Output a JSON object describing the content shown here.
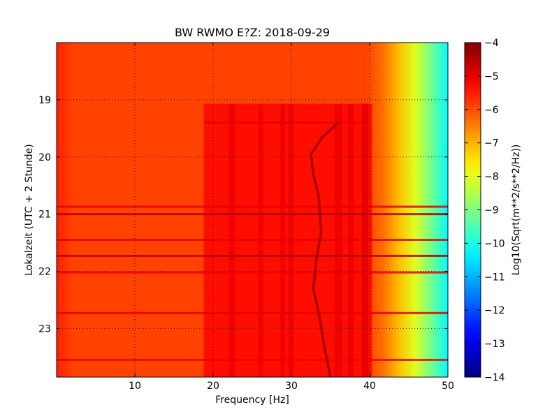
{
  "chart_data": {
    "type": "heatmap",
    "title": "BW RWMO E?Z: 2018-09-29",
    "xlabel": "Frequency [Hz]",
    "ylabel": "Lokalzeit (UTC + 2 Stunde)",
    "xlim": [
      0,
      50
    ],
    "ylim": [
      18.0,
      23.85
    ],
    "y_inverted": true,
    "grid": true,
    "x_ticks": [
      10,
      20,
      30,
      40,
      50
    ],
    "y_ticks": [
      19,
      20,
      21,
      22,
      23
    ],
    "colormap": "jet",
    "colorbar": {
      "label": "Log10(Sqrt(m**2/s**2/Hz))",
      "min": -14,
      "max": -4,
      "ticks": [
        -4,
        -5,
        -6,
        -7,
        -8,
        -9,
        -10,
        -11,
        -12,
        -13,
        -14
      ]
    },
    "background_level": -5.9,
    "falloff": {
      "start_hz": 40,
      "end_hz": 50,
      "level_at_end": -10.3
    },
    "elevated_band": {
      "freq_range": [
        18.8,
        40.3
      ],
      "time_start": 19.07,
      "level": -5.35
    },
    "dark_columns": [
      {
        "freq_range": [
          22.0,
          22.8
        ],
        "level": -5.05
      },
      {
        "freq_range": [
          25.8,
          26.4
        ],
        "level": -5.05
      },
      {
        "freq_range": [
          28.6,
          29.2
        ],
        "level": -5.05
      },
      {
        "freq_range": [
          29.6,
          30.3
        ],
        "level": -5.1
      },
      {
        "freq_range": [
          35.5,
          36.5
        ],
        "level": -5.05
      },
      {
        "freq_range": [
          37.2,
          38.0
        ],
        "level": -5.05
      },
      {
        "freq_range": [
          39.0,
          39.8
        ],
        "level": -4.95
      }
    ],
    "dark_rows": [
      {
        "time": 19.4,
        "freq_range": [
          18.8,
          40
        ],
        "level": -5.0
      },
      {
        "time": 20.87,
        "freq_range": [
          0,
          50
        ],
        "level": -5.0
      },
      {
        "time": 21.0,
        "freq_range": [
          0,
          50
        ],
        "level": -4.6
      },
      {
        "time": 21.45,
        "freq_range": [
          0,
          50
        ],
        "level": -5.0
      },
      {
        "time": 21.73,
        "freq_range": [
          0,
          50
        ],
        "level": -4.5
      },
      {
        "time": 22.02,
        "freq_range": [
          0,
          50
        ],
        "level": -5.1
      },
      {
        "time": 22.73,
        "freq_range": [
          0,
          50
        ],
        "level": -5.0
      },
      {
        "time": 23.55,
        "freq_range": [
          0,
          50
        ],
        "level": -5.1
      }
    ],
    "tonal_line": {
      "level": -4.4,
      "points": [
        {
          "time": 19.4,
          "freq": 36.0
        },
        {
          "time": 19.65,
          "freq": 34.0
        },
        {
          "time": 19.95,
          "freq": 32.5
        },
        {
          "time": 20.3,
          "freq": 32.8
        },
        {
          "time": 20.7,
          "freq": 33.5
        },
        {
          "time": 21.3,
          "freq": 33.8
        },
        {
          "time": 21.8,
          "freq": 33.2
        },
        {
          "time": 22.3,
          "freq": 32.8
        },
        {
          "time": 22.8,
          "freq": 33.6
        },
        {
          "time": 23.3,
          "freq": 34.2
        },
        {
          "time": 23.85,
          "freq": 35.0
        }
      ]
    }
  }
}
